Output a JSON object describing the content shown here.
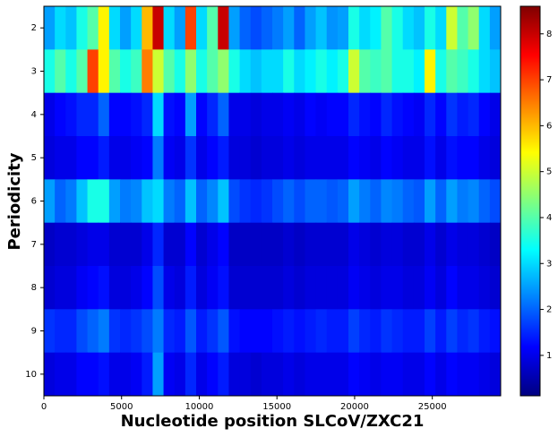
{
  "chart_data": {
    "type": "heatmap",
    "colormap": "jet",
    "xlabel": "Nucleotide position SLCoV/ZXC21",
    "ylabel": "Periodicity",
    "categories": [
      2,
      3,
      4,
      5,
      6,
      7,
      8,
      9,
      10
    ],
    "xbins": [
      0,
      700,
      1400,
      2100,
      2800,
      3500,
      4200,
      4900,
      5600,
      6300,
      7000,
      7700,
      8400,
      9100,
      9800,
      10500,
      11200,
      11900,
      12600,
      13300,
      14000,
      14700,
      15400,
      16100,
      16800,
      17500,
      18200,
      18900,
      19600,
      20300,
      21000,
      21700,
      22400,
      23100,
      23800,
      24500,
      25200,
      25900,
      26600,
      27300,
      28000,
      28700,
      29400
    ],
    "xlim": [
      0,
      29400
    ],
    "xticks": [
      0,
      5000,
      10000,
      15000,
      20000,
      25000
    ],
    "clim": [
      0.12,
      8.6
    ],
    "cticks": [
      1,
      2,
      3,
      4,
      5,
      6,
      7,
      8
    ],
    "values": [
      [
        2.5,
        3,
        2.8,
        3.5,
        4,
        5.5,
        3,
        2.5,
        3,
        6,
        8,
        3,
        2.5,
        7,
        3,
        4,
        8,
        2.5,
        2,
        1.8,
        2,
        2.2,
        2.5,
        2,
        2.5,
        2.8,
        2.4,
        2.5,
        3.5,
        3,
        3.2,
        4,
        3.5,
        3,
        2.8,
        3.5,
        3,
        5,
        4,
        4.5,
        3,
        2.5
      ],
      [
        3.5,
        4,
        3.5,
        4,
        7,
        5.5,
        4,
        3.5,
        3.8,
        6.5,
        5,
        4,
        3.5,
        4.5,
        3.5,
        4,
        4.5,
        3.5,
        3,
        2.8,
        3,
        3,
        3.5,
        3,
        3.2,
        3.5,
        3.2,
        3.5,
        5,
        4,
        3.8,
        4,
        3.5,
        3.5,
        3.2,
        5.5,
        3.5,
        4,
        3.8,
        3.5,
        3,
        2.8
      ],
      [
        1,
        1.2,
        1.3,
        1.5,
        1.5,
        2,
        1.2,
        1.2,
        1.3,
        1.5,
        3,
        1.3,
        1.2,
        2.5,
        1.2,
        1.5,
        2,
        1,
        1,
        0.9,
        1,
        1,
        1.1,
        1,
        1.2,
        1.1,
        1.2,
        1.2,
        1.5,
        1.3,
        1.2,
        1.5,
        1.3,
        1.2,
        1.1,
        1.5,
        1.2,
        1.6,
        1.4,
        1.5,
        1.2,
        1
      ],
      [
        0.9,
        1,
        1,
        1.2,
        1.2,
        1.4,
        1,
        1,
        1.1,
        1.2,
        2.2,
        1.1,
        1,
        1.6,
        1,
        1.2,
        1.4,
        0.9,
        0.9,
        0.8,
        0.9,
        0.9,
        1,
        0.9,
        1,
        1,
        1,
        1,
        1.2,
        1.1,
        1,
        1.2,
        1.1,
        1,
        1,
        1.3,
        1,
        1.3,
        1.2,
        1.2,
        1,
        0.9
      ],
      [
        2.5,
        2,
        2.2,
        2.8,
        3.5,
        3.5,
        2.5,
        2.2,
        2.3,
        2.8,
        3,
        2.2,
        2,
        2.8,
        2,
        2.3,
        2.8,
        1.8,
        1.6,
        1.5,
        1.6,
        1.8,
        2,
        1.8,
        2,
        2,
        1.9,
        2,
        2.5,
        2.2,
        2,
        2.3,
        2.2,
        2,
        1.9,
        2.5,
        2,
        2.5,
        2.2,
        2.3,
        2,
        1.8
      ],
      [
        0.7,
        0.8,
        0.8,
        0.9,
        1,
        1,
        0.8,
        0.8,
        0.8,
        1,
        1.5,
        0.8,
        0.8,
        1.2,
        0.8,
        1,
        1.2,
        0.7,
        0.7,
        0.7,
        0.7,
        0.7,
        0.8,
        0.7,
        0.8,
        0.8,
        0.8,
        0.8,
        1,
        0.9,
        0.8,
        0.9,
        0.9,
        0.8,
        0.8,
        1,
        0.8,
        1,
        0.9,
        0.9,
        0.8,
        0.7
      ],
      [
        0.8,
        0.9,
        0.9,
        1.1,
        1.2,
        1.3,
        0.9,
        0.9,
        1,
        1.2,
        1.8,
        1,
        0.9,
        1.4,
        0.9,
        1.1,
        1.3,
        0.8,
        0.8,
        0.8,
        0.8,
        0.8,
        0.9,
        0.8,
        0.9,
        0.9,
        0.9,
        0.9,
        1.1,
        1,
        0.9,
        1,
        1,
        0.9,
        0.9,
        1.1,
        0.9,
        1.2,
        1,
        1,
        0.9,
        0.8
      ],
      [
        1.6,
        1.5,
        1.5,
        1.8,
        2,
        2.2,
        1.6,
        1.5,
        1.6,
        1.8,
        2.2,
        1.5,
        1.4,
        1.9,
        1.4,
        1.6,
        1.9,
        1.3,
        1.2,
        1.2,
        1.2,
        1.3,
        1.4,
        1.3,
        1.4,
        1.5,
        1.4,
        1.4,
        1.7,
        1.5,
        1.4,
        1.6,
        1.5,
        1.4,
        1.4,
        1.7,
        1.4,
        1.7,
        1.5,
        1.6,
        1.4,
        1.3
      ],
      [
        0.9,
        1,
        1,
        1.2,
        1.2,
        1.3,
        1,
        1,
        1.1,
        1.4,
        2.5,
        1.1,
        1,
        1.5,
        1,
        1.2,
        1.4,
        0.9,
        0.9,
        0.8,
        0.9,
        0.9,
        1,
        0.9,
        1,
        1,
        1,
        1,
        1.2,
        1.1,
        1,
        1.1,
        1.1,
        1,
        1,
        1.2,
        1,
        1.2,
        1.1,
        1.1,
        1,
        0.9
      ]
    ]
  }
}
